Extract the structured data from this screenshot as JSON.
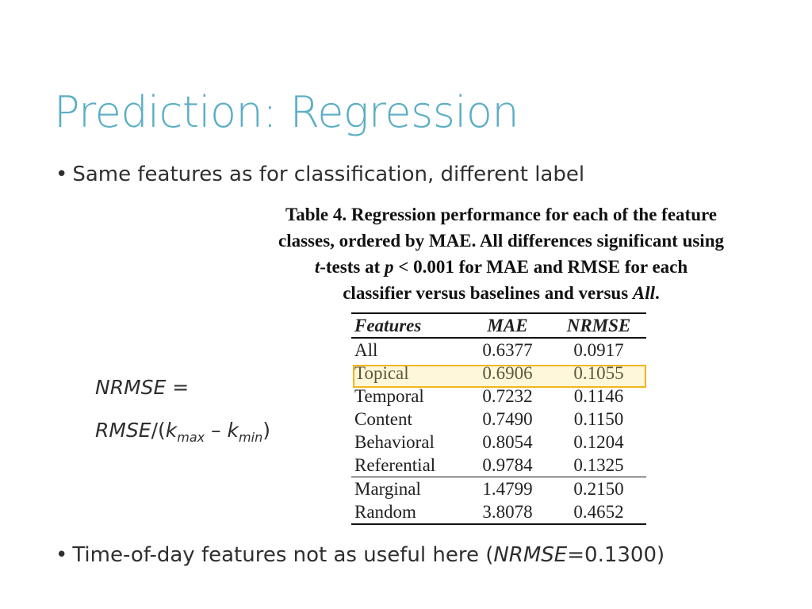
{
  "title": "Prediction: Regression",
  "bullets": {
    "first": "Same features as for classification, different label",
    "second_prefix": "Time-of-day features not as useful here (",
    "second_italic": "NRMSE",
    "second_suffix": "=0.1300)",
    "marker": "•"
  },
  "caption": {
    "line1": "Table 4. Regression performance for each of the feature",
    "line2": "classes, ordered by MAE. All differences significant using",
    "line3_t": "t",
    "line3_mid1": "-tests at ",
    "line3_p": "p",
    "line3_mid2": " < 0.001 for MAE and RMSE for each",
    "line4_prefix": "classifier versus baselines and versus ",
    "line4_all": "All",
    "line4_suffix": "."
  },
  "formula": {
    "line1_var": "NRMSE",
    "line1_eq": " =",
    "line2_rmse": "RMSE",
    "line2_open": "/(",
    "k": "k",
    "sub_max": "max",
    "minus": " – ",
    "sub_min": "min",
    "close": ")"
  },
  "table": {
    "headers": [
      "Features",
      "MAE",
      "NRMSE"
    ],
    "rows": [
      [
        "All",
        "0.6377",
        "0.0917"
      ],
      [
        "Topical",
        "0.6906",
        "0.1055"
      ],
      [
        "Temporal",
        "0.7232",
        "0.1146"
      ],
      [
        "Content",
        "0.7490",
        "0.1150"
      ],
      [
        "Behavioral",
        "0.8054",
        "0.1204"
      ],
      [
        "Referential",
        "0.9784",
        "0.1325"
      ],
      [
        "Marginal",
        "1.4799",
        "0.2150"
      ],
      [
        "Random",
        "3.8078",
        "0.4652"
      ]
    ],
    "highlighted_row": "Topical",
    "highlight_color": "#f2b51b"
  },
  "colors": {
    "title": "#5aaec5",
    "text": "#2f2f2f"
  }
}
